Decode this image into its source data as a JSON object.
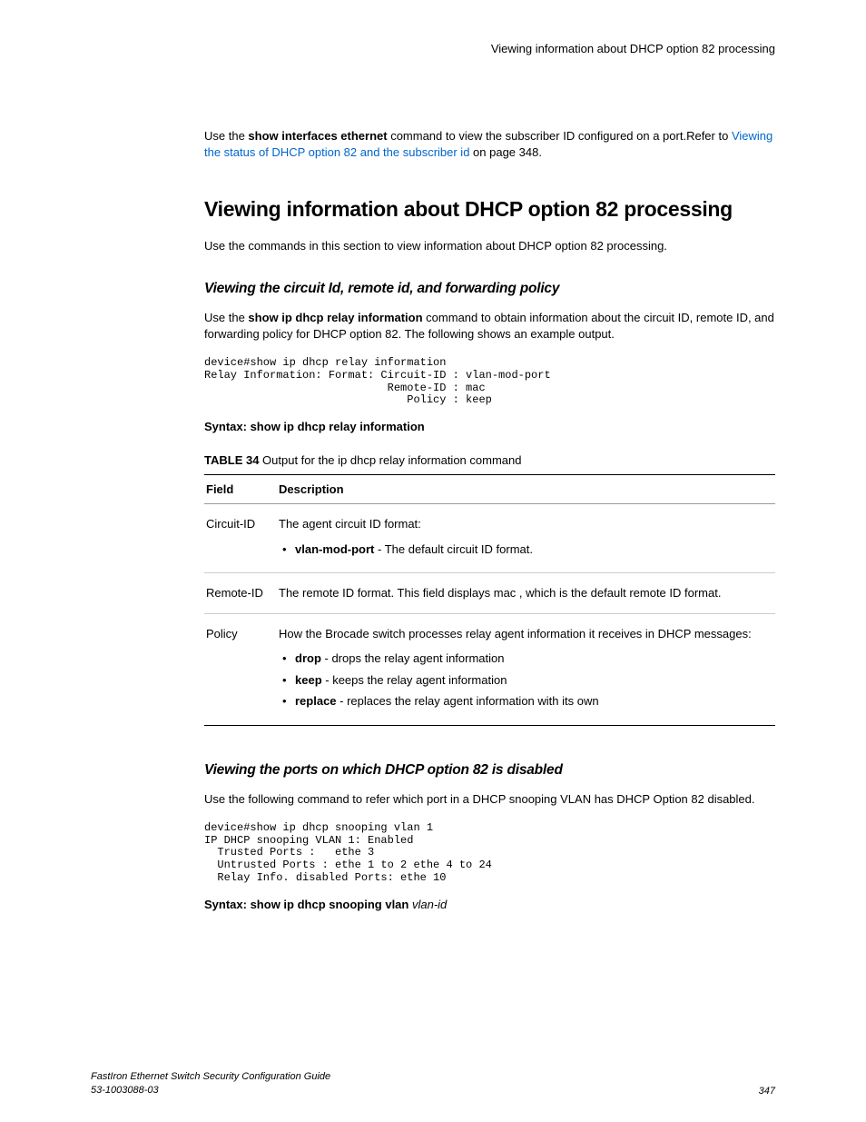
{
  "header": {
    "running_title": "Viewing information about DHCP option 82 processing"
  },
  "intro": {
    "pre_text": "Use the ",
    "cmd": "show interfaces ethernet",
    "post_text": " command to view the subscriber ID configured on a port.Refer to ",
    "link_text": "Viewing the status of DHCP option 82 and the subscriber id",
    "link_suffix": " on page 348."
  },
  "h1": "Viewing information about DHCP option 82 processing",
  "h1_body": "Use the commands in this section to view information about DHCP option 82 processing.",
  "sec1": {
    "heading": "Viewing the circuit Id, remote id, and forwarding policy",
    "p_pre": "Use the ",
    "p_cmd": "show ip dhcp relay information",
    "p_post": " command to obtain information about the circuit ID, remote ID, and forwarding policy for DHCP option 82. The following shows an example output.",
    "code": "device#show ip dhcp relay information\nRelay Information: Format: Circuit-ID : vlan-mod-port\n                            Remote-ID : mac\n                               Policy : keep",
    "syntax_label": "Syntax: ",
    "syntax_cmd": "show ip dhcp relay information",
    "table_caption_label": "TABLE 34",
    "table_caption_text": "  Output for the ip dhcp relay information command",
    "table": {
      "col1": "Field",
      "col2": "Description",
      "rows": [
        {
          "field": "Circuit-ID",
          "desc_intro": "The agent circuit ID format:",
          "items": [
            {
              "b": "vlan-mod-port",
              "rest": " - The default circuit ID format."
            }
          ]
        },
        {
          "field": "Remote-ID",
          "desc_pre": "The remote ID format. This field displays ",
          "desc_b": "mac",
          "desc_post": " , which is the default remote ID format."
        },
        {
          "field": "Policy",
          "desc_intro": "How the Brocade switch processes relay agent information it receives in DHCP messages:",
          "items": [
            {
              "b": "drop",
              "rest": " - drops the relay agent information"
            },
            {
              "b": "keep",
              "rest": " - keeps the relay agent information"
            },
            {
              "b": "replace",
              "rest": " - replaces the relay agent information with its own"
            }
          ]
        }
      ]
    }
  },
  "sec2": {
    "heading": "Viewing the ports on which DHCP option 82 is disabled",
    "p": "Use the following command to refer which port in a DHCP snooping VLAN has DHCP Option 82 disabled.",
    "code": "device#show ip dhcp snooping vlan 1\nIP DHCP snooping VLAN 1: Enabled\n  Trusted Ports :   ethe 3\n  Untrusted Ports : ethe 1 to 2 ethe 4 to 24\n  Relay Info. disabled Ports: ethe 10",
    "syntax_label": "Syntax: ",
    "syntax_cmd": "show ip dhcp snooping vlan ",
    "syntax_arg": "vlan-id"
  },
  "footer": {
    "doc_title": "FastIron Ethernet Switch Security Configuration Guide",
    "doc_num": "53-1003088-03",
    "page": "347"
  }
}
